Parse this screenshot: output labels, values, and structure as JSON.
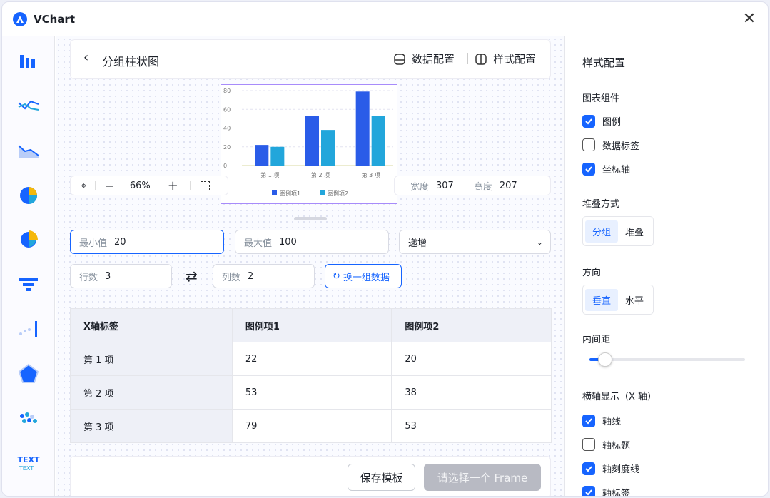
{
  "app": {
    "title": "VChart",
    "brand_color": "#1664ff"
  },
  "sidebar": {
    "items": [
      "bar-chart",
      "line-chart",
      "area-chart",
      "pie-chart",
      "rose-chart",
      "funnel-chart",
      "scatter-bar-chart",
      "radar-chart",
      "heatmap-chart",
      "text-chart"
    ],
    "text_icon_label": "TEXT"
  },
  "header": {
    "title": "分组柱状图",
    "data_config": "数据配置",
    "style_config": "样式配置"
  },
  "zoom": {
    "value": "66%",
    "width_label": "宽度",
    "width": "307",
    "height_label": "高度",
    "height": "207"
  },
  "chart_data": {
    "type": "bar",
    "categories": [
      "第 1 项",
      "第 2 项",
      "第 3 项"
    ],
    "yticks": [
      "0",
      "20",
      "40",
      "60",
      "80"
    ],
    "ylim": [
      0,
      80
    ],
    "series": [
      {
        "name": "图例项1",
        "values": [
          22,
          53,
          79
        ],
        "color": "#2a5ce8"
      },
      {
        "name": "图例项2",
        "values": [
          20,
          38,
          53
        ],
        "color": "#22a6db"
      }
    ],
    "legend": "bottom",
    "grid": true
  },
  "controls": {
    "min_label": "最小值",
    "min_value": "20",
    "max_label": "最大值",
    "max_value": "100",
    "order": "递增",
    "rows_label": "行数",
    "rows": "3",
    "cols_label": "列数",
    "cols": "2",
    "regen": "换一组数据"
  },
  "table": {
    "headers": [
      "X轴标签",
      "图例项1",
      "图例项2"
    ],
    "rows": [
      [
        "第 1 项",
        "22",
        "20"
      ],
      [
        "第 2 项",
        "53",
        "38"
      ],
      [
        "第 3 项",
        "79",
        "53"
      ]
    ]
  },
  "footer": {
    "save": "保存模板",
    "select_frame": "请选择一个 Frame"
  },
  "panel": {
    "title": "样式配置",
    "components_title": "图表组件",
    "components": [
      {
        "label": "图例",
        "checked": true
      },
      {
        "label": "数据标签",
        "checked": false
      },
      {
        "label": "坐标轴",
        "checked": true
      }
    ],
    "stack_title": "堆叠方式",
    "stack": [
      "分组",
      "堆叠"
    ],
    "direction_title": "方向",
    "direction": [
      "垂直",
      "水平"
    ],
    "padding_title": "内间距",
    "padding_value": 0.1,
    "xaxis_title": "横轴显示（X 轴）",
    "xaxis": [
      {
        "label": "轴线",
        "checked": true
      },
      {
        "label": "轴标题",
        "checked": false
      },
      {
        "label": "轴刻度线",
        "checked": true
      },
      {
        "label": "轴标签",
        "checked": true
      }
    ]
  }
}
